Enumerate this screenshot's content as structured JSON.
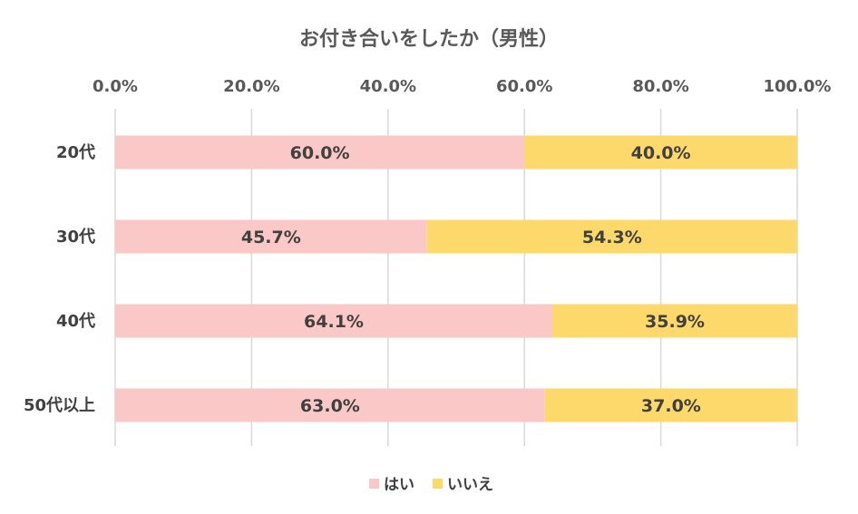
{
  "chart_data": {
    "type": "bar",
    "orientation": "horizontal",
    "stacked": true,
    "title": "お付き合いをしたか（男性）",
    "categories": [
      "20代",
      "30代",
      "40代",
      "50代以上"
    ],
    "series": [
      {
        "name": "はい",
        "color": "#fbc8c8",
        "values": [
          60.0,
          45.7,
          64.1,
          63.0
        ]
      },
      {
        "name": "いいえ",
        "color": "#fcd96a",
        "values": [
          40.0,
          54.3,
          35.9,
          37.0
        ]
      }
    ],
    "xlim": [
      0,
      100
    ],
    "xticks": [
      "0.0%",
      "20.0%",
      "40.0%",
      "60.0%",
      "80.0%",
      "100.0%"
    ],
    "x_axis_position": "top",
    "grid": true,
    "legend_position": "bottom",
    "data_labels": true
  }
}
